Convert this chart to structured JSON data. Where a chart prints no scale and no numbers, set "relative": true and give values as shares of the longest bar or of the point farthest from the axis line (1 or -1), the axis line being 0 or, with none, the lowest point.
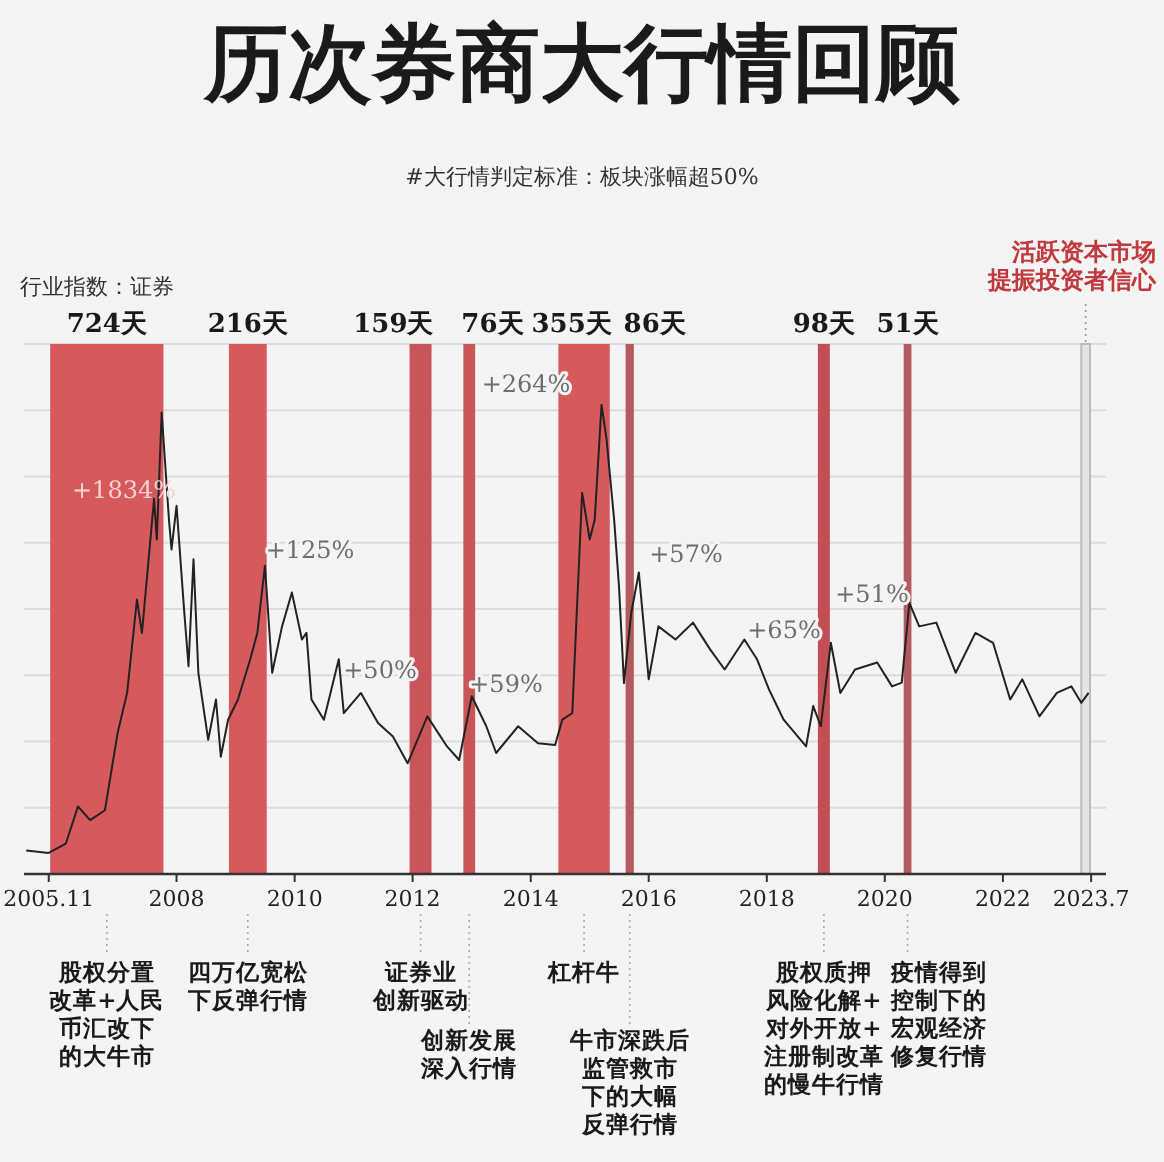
{
  "chart_data": {
    "type": "line",
    "title": "历次券商大行情回顾",
    "subtitle": "#大行情判定标准：板块涨幅超50%",
    "ylabel": "行业指数：证券",
    "relative": true,
    "grid": true,
    "xlim": [
      "2005-06",
      "2023-10"
    ],
    "xticks": [
      {
        "value": "2005-11",
        "label": "2005.11"
      },
      {
        "value": "2008",
        "label": "2008"
      },
      {
        "value": "2010",
        "label": "2010"
      },
      {
        "value": "2012",
        "label": "2012"
      },
      {
        "value": "2014",
        "label": "2014"
      },
      {
        "value": "2016",
        "label": "2016"
      },
      {
        "value": "2018",
        "label": "2018"
      },
      {
        "value": "2020",
        "label": "2020"
      },
      {
        "value": "2022",
        "label": "2022"
      },
      {
        "value": "2023-07",
        "label": "2023.7"
      }
    ],
    "series": [
      {
        "color": "#222222",
        "x": [
          "2005-06-15",
          "2005-11-01",
          "2006-02-15",
          "2006-05-01",
          "2006-07-15",
          "2006-10-15",
          "2007-01-01",
          "2007-03-01",
          "2007-05-01",
          "2007-06-01",
          "2007-08-15",
          "2007-09-01",
          "2007-10-01",
          "2007-11-15",
          "2007-12-01",
          "2008-01-01",
          "2008-02-15",
          "2008-03-15",
          "2008-04-15",
          "2008-05-15",
          "2008-07-15",
          "2008-09-01",
          "2008-10-01",
          "2008-11-15",
          "2009-01-15",
          "2009-04-01",
          "2009-05-15",
          "2009-07-01",
          "2009-08-15",
          "2009-10-15",
          "2009-12-15",
          "2010-02-15",
          "2010-03-15",
          "2010-04-15",
          "2010-07-01",
          "2010-10-01",
          "2010-11-01",
          "2011-02-15",
          "2011-06-01",
          "2011-09-01",
          "2011-12-01",
          "2012-04-01",
          "2012-08-01",
          "2012-10-15",
          "2013-01-01",
          "2013-04-01",
          "2013-06-01",
          "2013-10-15",
          "2014-02-15",
          "2014-06-01",
          "2014-07-15",
          "2014-09-15",
          "2014-11-15",
          "2015-01-01",
          "2015-02-01",
          "2015-03-15",
          "2015-04-15",
          "2015-06-01",
          "2015-07-01",
          "2015-08-01",
          "2015-09-15",
          "2015-11-01",
          "2016-01-01",
          "2016-03-01",
          "2016-06-15",
          "2016-10-01",
          "2017-01-15",
          "2017-04-15",
          "2017-08-15",
          "2017-11-01",
          "2018-01-15",
          "2018-04-15",
          "2018-09-01",
          "2018-10-15",
          "2018-12-01",
          "2019-02-01",
          "2019-04-01",
          "2019-07-01",
          "2019-11-15",
          "2020-02-15",
          "2020-04-15",
          "2020-06-01",
          "2020-08-01",
          "2020-11-15",
          "2021-03-15",
          "2021-07-15",
          "2021-11-01",
          "2022-02-15",
          "2022-05-01",
          "2022-08-15",
          "2022-12-01",
          "2023-03-01",
          "2023-05-01",
          "2023-06-15"
        ],
        "values": [
          0.05,
          0.045,
          0.065,
          0.144,
          0.115,
          0.136,
          0.3,
          0.386,
          0.585,
          0.514,
          0.8,
          0.713,
          0.984,
          0.756,
          0.692,
          0.785,
          0.571,
          0.443,
          0.671,
          0.429,
          0.286,
          0.372,
          0.25,
          0.329,
          0.372,
          0.458,
          0.514,
          0.657,
          0.429,
          0.528,
          0.6,
          0.5,
          0.514,
          0.372,
          0.329,
          0.458,
          0.343,
          0.386,
          0.322,
          0.293,
          0.236,
          0.336,
          0.272,
          0.243,
          0.379,
          0.315,
          0.258,
          0.315,
          0.279,
          0.275,
          0.329,
          0.343,
          0.813,
          0.713,
          0.756,
          1,
          0.927,
          0.756,
          0.614,
          0.407,
          0.557,
          0.643,
          0.415,
          0.528,
          0.5,
          0.536,
          0.479,
          0.436,
          0.5,
          0.458,
          0.393,
          0.329,
          0.272,
          0.358,
          0.315,
          0.493,
          0.386,
          0.436,
          0.451,
          0.4,
          0.408,
          0.578,
          0.528,
          0.536,
          0.429,
          0.514,
          0.493,
          0.372,
          0.415,
          0.336,
          0.386,
          0.4,
          0.365,
          0.386
        ]
      }
    ],
    "bands": [
      {
        "axis": "x",
        "from": "2005-11-10",
        "to": "2007-10-12",
        "label": "724天",
        "color": "#d65a5c"
      },
      {
        "axis": "x",
        "from": "2008-11-20",
        "to": "2009-07-12",
        "label": "216天",
        "color": "#d65a5c"
      },
      {
        "axis": "x",
        "from": "2011-12-13",
        "to": "2012-04-27",
        "label": "159天",
        "color": "#c95559"
      },
      {
        "axis": "x",
        "from": "2012-11-10",
        "to": "2013-01-22",
        "label": "76天",
        "color": "#c95559"
      },
      {
        "axis": "x",
        "from": "2014-06-21",
        "to": "2015-05-05",
        "label": "355天",
        "color": "#d65a5c"
      },
      {
        "axis": "x",
        "from": "2015-08-11",
        "to": "2015-10-01",
        "label": "86天",
        "color": "#b35a5e"
      },
      {
        "axis": "x",
        "from": "2018-11-13",
        "to": "2019-01-26",
        "label": "98天",
        "color": "#c24f55"
      },
      {
        "axis": "x",
        "from": "2020-04-27",
        "to": "2020-06-14",
        "label": "51天",
        "color": "#b35a5e"
      },
      {
        "axis": "x",
        "from": "2023-05-01",
        "to": "2023-06-24",
        "label": "活跃资本市场提振投资者信心",
        "color": "#e6e3e3"
      }
    ],
    "annotations": [
      "+1834%",
      "+125%",
      "+50%",
      "+59%",
      "+264%",
      "+57%",
      "+65%",
      "+51%",
      "股权分置改革+人民币汇改下的大牛市",
      "四万亿宽松下反弹行情",
      "证券业创新驱动",
      "创新发展深入行情",
      "杠杆牛",
      "牛市深跌后监管救市下的大幅反弹行情",
      "股权质押风险化解+对外开放+注册制改革的慢牛行情",
      "疫情得到控制下的宏观经济修复行情"
    ]
  }
}
